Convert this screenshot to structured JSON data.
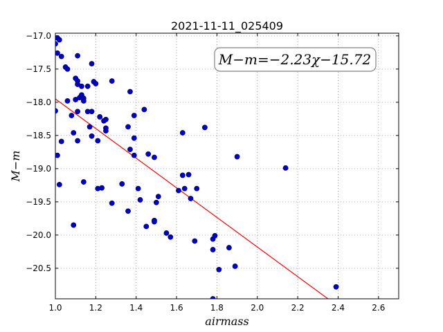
{
  "chart_data": {
    "type": "scatter",
    "title": "2021-11-11_025409",
    "xlabel": "airmass",
    "ylabel": "M−m",
    "xlim": [
      1.0,
      2.7
    ],
    "ylim": [
      -20.96,
      -16.96
    ],
    "y_inverted": true,
    "grid": true,
    "x_ticks": [
      "1.0",
      "1.2",
      "1.4",
      "1.6",
      "1.8",
      "2.0",
      "2.2",
      "2.4",
      "2.6"
    ],
    "y_ticks": [
      "−17.0",
      "−17.5",
      "−18.0",
      "−18.5",
      "−19.0",
      "−19.5",
      "−20.0",
      "−20.5"
    ],
    "annotation": "M−m=−2.23χ−15.72",
    "colors": {
      "points": "#0000bf",
      "fit": "#ff0000",
      "grid": "#888888"
    },
    "fit": {
      "slope": -2.23,
      "intercept": -15.72
    },
    "points": [
      [
        1.0,
        -17.12
      ],
      [
        1.0,
        -18.13
      ],
      [
        1.01,
        -17.03
      ],
      [
        1.01,
        -17.26
      ],
      [
        1.01,
        -18.8
      ],
      [
        1.02,
        -17.06
      ],
      [
        1.02,
        -19.24
      ],
      [
        1.03,
        -17.31
      ],
      [
        1.03,
        -18.59
      ],
      [
        1.05,
        -17.47
      ],
      [
        1.06,
        -17.5
      ],
      [
        1.06,
        -17.98
      ],
      [
        1.08,
        -18.2
      ],
      [
        1.09,
        -18.46
      ],
      [
        1.09,
        -19.85
      ],
      [
        1.1,
        -17.64
      ],
      [
        1.1,
        -17.96
      ],
      [
        1.11,
        -17.68
      ],
      [
        1.11,
        -17.3
      ],
      [
        1.11,
        -17.73
      ],
      [
        1.11,
        -18.14
      ],
      [
        1.11,
        -18.58
      ],
      [
        1.12,
        -17.93
      ],
      [
        1.13,
        -17.76
      ],
      [
        1.13,
        -17.89
      ],
      [
        1.14,
        -17.94
      ],
      [
        1.14,
        -17.98
      ],
      [
        1.14,
        -19.2
      ],
      [
        1.16,
        -18.14
      ],
      [
        1.16,
        -17.76
      ],
      [
        1.17,
        -18.37
      ],
      [
        1.18,
        -17.42
      ],
      [
        1.18,
        -18.14
      ],
      [
        1.18,
        -18.51
      ],
      [
        1.19,
        -17.69
      ],
      [
        1.2,
        -17.72
      ],
      [
        1.21,
        -18.58
      ],
      [
        1.21,
        -19.3
      ],
      [
        1.22,
        -18.22
      ],
      [
        1.23,
        -19.29
      ],
      [
        1.24,
        -18.28
      ],
      [
        1.25,
        -18.26
      ],
      [
        1.25,
        -18.39
      ],
      [
        1.25,
        -18.43
      ],
      [
        1.28,
        -17.68
      ],
      [
        1.28,
        -19.52
      ],
      [
        1.33,
        -19.23
      ],
      [
        1.36,
        -18.37
      ],
      [
        1.36,
        -19.64
      ],
      [
        1.37,
        -17.84
      ],
      [
        1.37,
        -18.71
      ],
      [
        1.39,
        -18.2
      ],
      [
        1.39,
        -18.54
      ],
      [
        1.39,
        -18.8
      ],
      [
        1.41,
        -19.3
      ],
      [
        1.42,
        -19.47
      ],
      [
        1.44,
        -18.11
      ],
      [
        1.45,
        -19.87
      ],
      [
        1.46,
        -18.78
      ],
      [
        1.49,
        -18.83
      ],
      [
        1.49,
        -19.78
      ],
      [
        1.49,
        -19.8
      ],
      [
        1.5,
        -19.51
      ],
      [
        1.51,
        -19.42
      ],
      [
        1.55,
        -19.97
      ],
      [
        1.57,
        -20.03
      ],
      [
        1.61,
        -19.33
      ],
      [
        1.63,
        -18.46
      ],
      [
        1.63,
        -19.1
      ],
      [
        1.64,
        -19.3
      ],
      [
        1.66,
        -19.09
      ],
      [
        1.67,
        -19.45
      ],
      [
        1.69,
        -20.09
      ],
      [
        1.7,
        -19.3
      ],
      [
        1.74,
        -18.38
      ],
      [
        1.78,
        -20.06
      ],
      [
        1.78,
        -20.22
      ],
      [
        1.78,
        -20.96
      ],
      [
        1.79,
        -20.01
      ],
      [
        1.81,
        -20.52
      ],
      [
        1.86,
        -20.19
      ],
      [
        1.89,
        -20.47
      ],
      [
        1.9,
        -18.82
      ],
      [
        2.14,
        -18.99
      ],
      [
        2.39,
        -20.78
      ]
    ]
  }
}
